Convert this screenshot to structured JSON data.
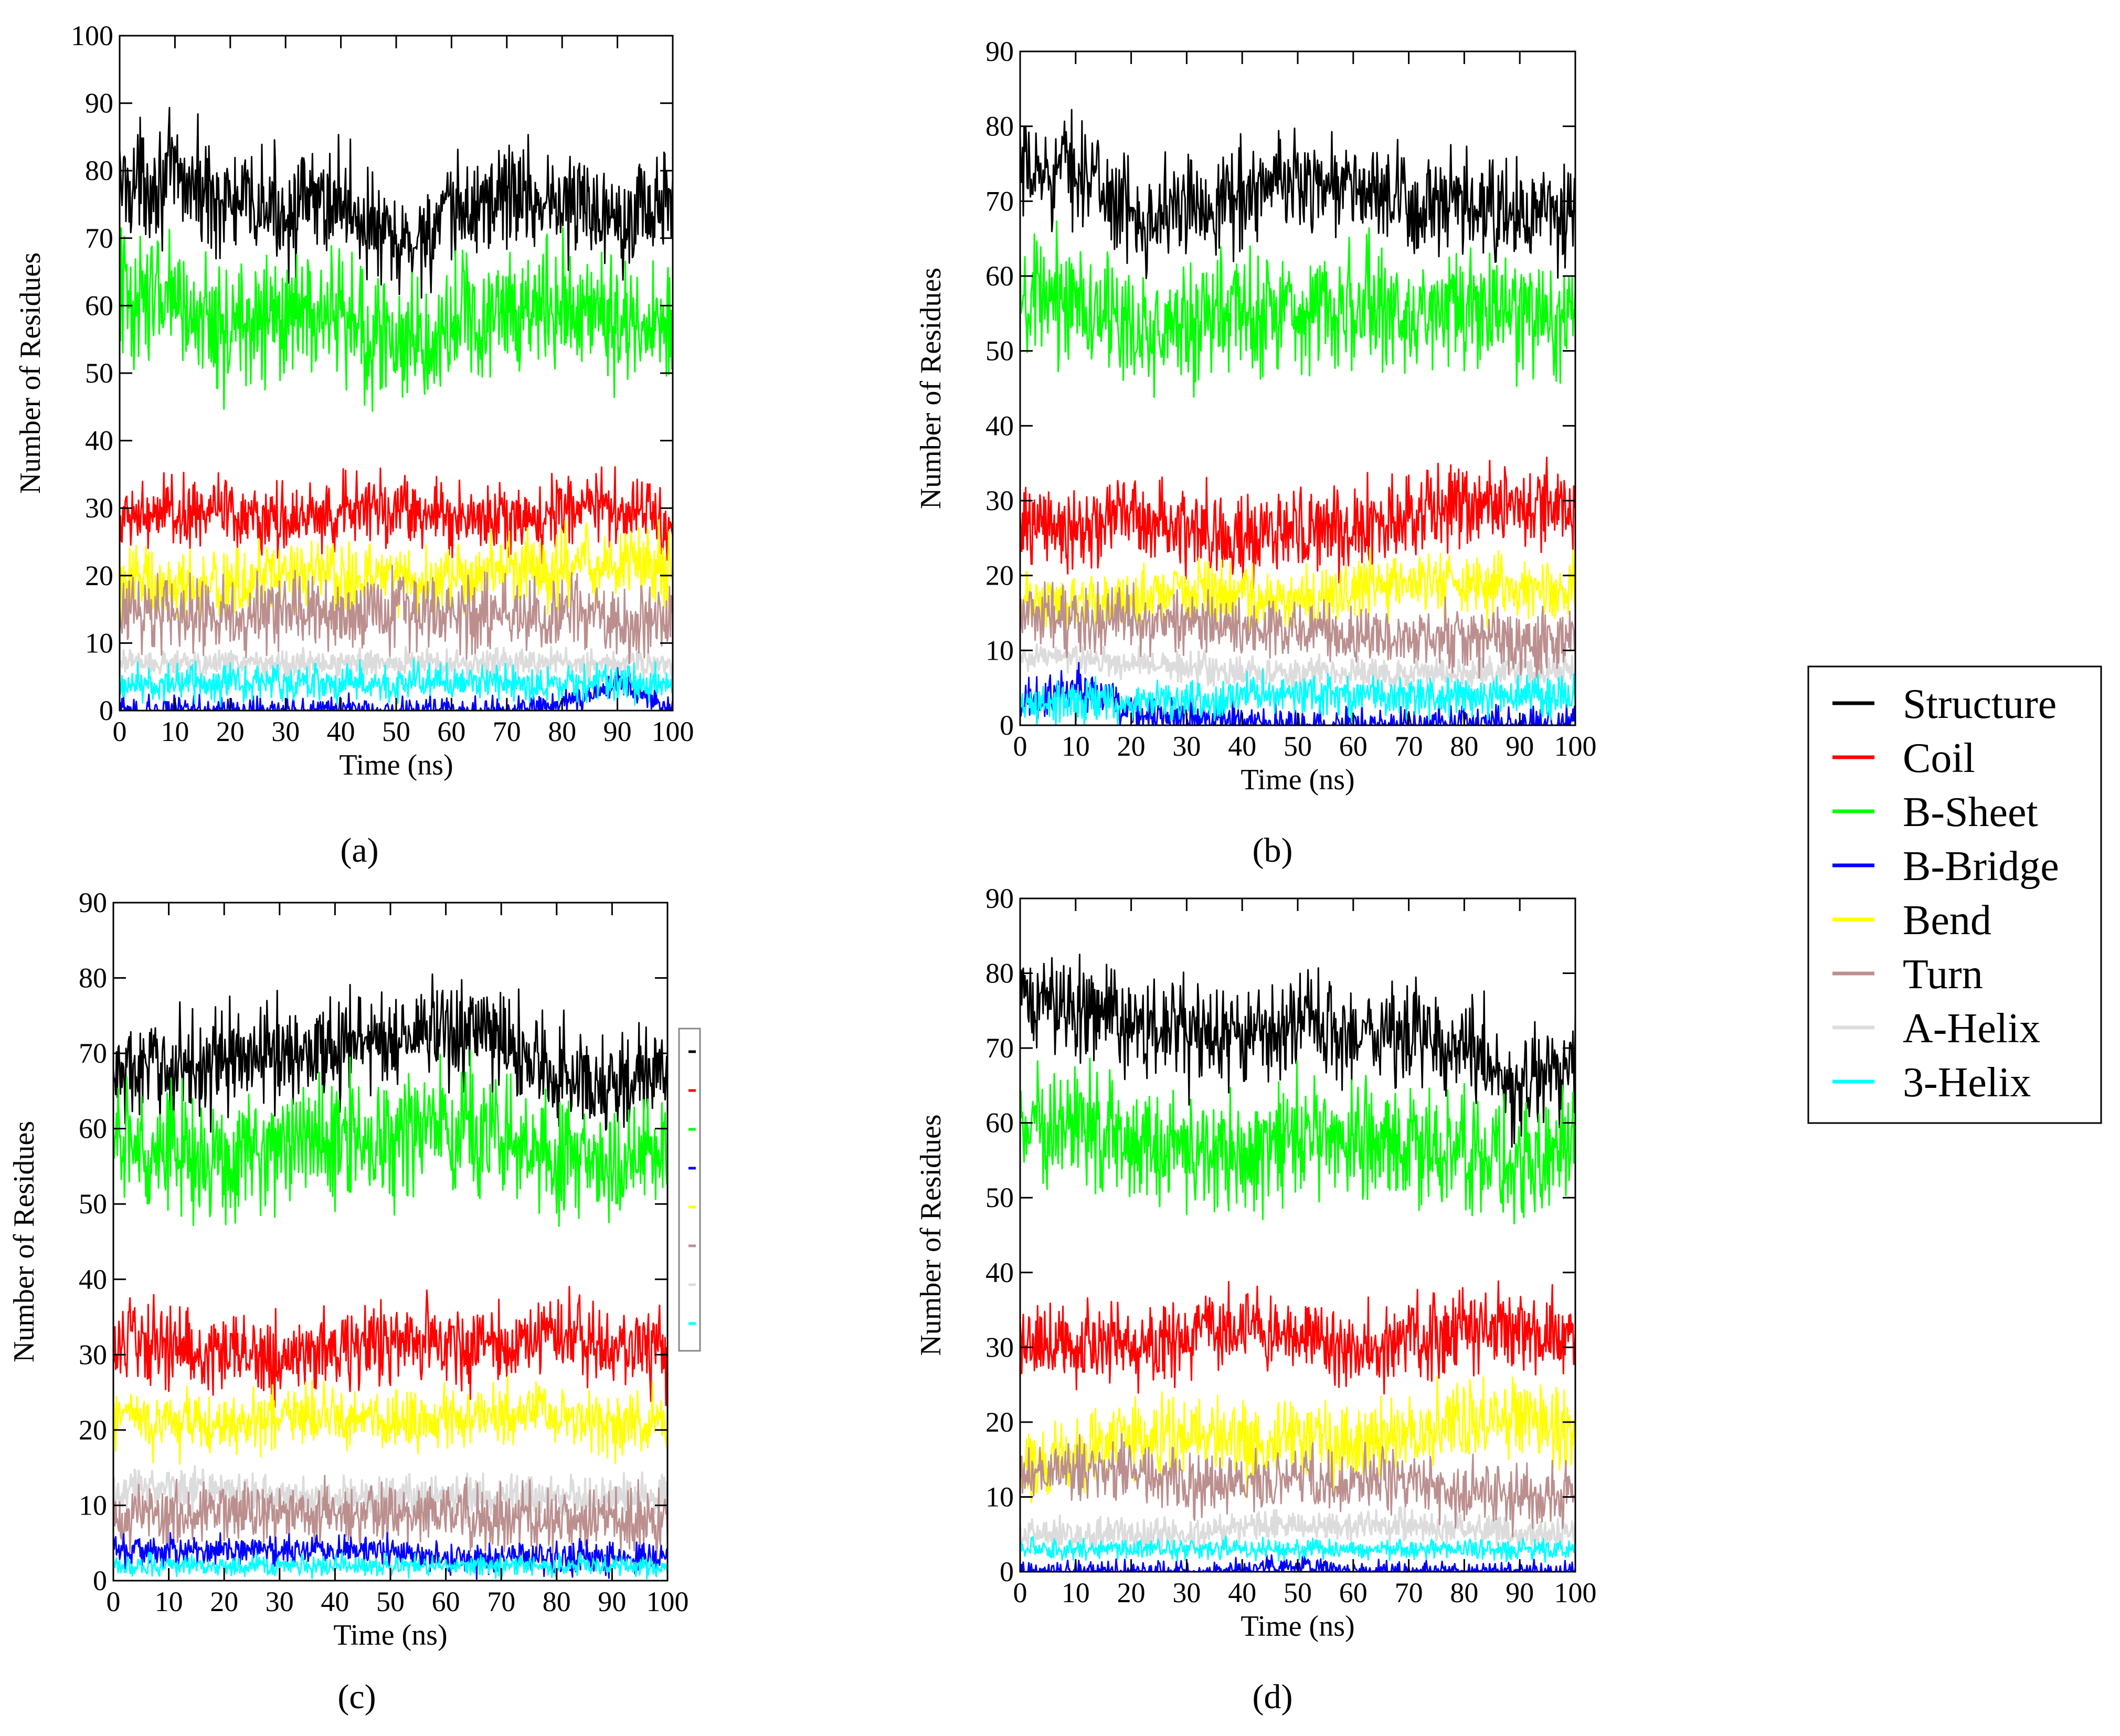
{
  "panel_labels": [
    "(a)",
    "(b)",
    "(c)",
    "(d)"
  ],
  "legend": {
    "entries": [
      {
        "name": "Structure",
        "color": "#000000"
      },
      {
        "name": "Coil",
        "color": "#ff0000"
      },
      {
        "name": "B-Sheet",
        "color": "#00ff00"
      },
      {
        "name": "B-Bridge",
        "color": "#0000ff"
      },
      {
        "name": "Bend",
        "color": "#ffff00"
      },
      {
        "name": "Turn",
        "color": "#bc8f8f"
      },
      {
        "name": "A-Helix",
        "color": "#dcdcdc"
      },
      {
        "name": "3-Helix",
        "color": "#00ffff"
      }
    ]
  },
  "chart_data": [
    {
      "type": "line",
      "panel": "(a)",
      "xlabel": "Time (ns)",
      "ylabel": "Number of Residues",
      "xlim": [
        0,
        100
      ],
      "ylim": [
        0,
        100
      ],
      "xticks": [
        0,
        10,
        20,
        30,
        40,
        50,
        60,
        70,
        80,
        90,
        100
      ],
      "yticks": [
        0,
        10,
        20,
        30,
        40,
        50,
        60,
        70,
        80,
        90,
        100
      ],
      "x_samples": [
        0,
        10,
        20,
        30,
        40,
        50,
        60,
        70,
        80,
        90,
        100
      ],
      "series": [
        {
          "name": "Structure",
          "values": [
            78,
            79,
            75,
            74,
            76,
            68,
            73,
            77,
            75,
            74,
            75
          ],
          "spread": 6
        },
        {
          "name": "B-Sheet",
          "values": [
            62,
            60,
            57,
            58,
            58,
            54,
            57,
            60,
            60,
            58,
            57
          ],
          "spread": 7
        },
        {
          "name": "Coil",
          "values": [
            29,
            29,
            30,
            28,
            29,
            30,
            29,
            28,
            30,
            30,
            28
          ],
          "spread": 4
        },
        {
          "name": "Bend",
          "values": [
            19,
            18,
            19,
            20,
            20,
            20,
            19,
            21,
            21,
            22,
            21
          ],
          "spread": 4
        },
        {
          "name": "Turn",
          "values": [
            15,
            15,
            14,
            15,
            14,
            15,
            14,
            14,
            15,
            13,
            14
          ],
          "spread": 4
        },
        {
          "name": "A-Helix",
          "values": [
            7,
            7,
            7,
            7,
            7,
            7,
            7,
            7,
            7,
            7,
            7
          ],
          "spread": 1.5
        },
        {
          "name": "B-Bridge",
          "values": [
            0,
            0,
            0,
            0,
            0,
            0,
            0,
            0,
            1,
            4,
            0
          ],
          "spread": 1.5
        },
        {
          "name": "3-Helix",
          "values": [
            4,
            4,
            4,
            4,
            4,
            4,
            4,
            4,
            4,
            4,
            4
          ],
          "spread": 2
        }
      ]
    },
    {
      "type": "line",
      "panel": "(b)",
      "xlabel": "Time (ns)",
      "ylabel": "Number of Residues",
      "xlim": [
        0,
        100
      ],
      "ylim": [
        0,
        90
      ],
      "xticks": [
        0,
        10,
        20,
        30,
        40,
        50,
        60,
        70,
        80,
        90,
        100
      ],
      "yticks": [
        0,
        10,
        20,
        30,
        40,
        50,
        60,
        70,
        80,
        90
      ],
      "x_samples": [
        0,
        10,
        20,
        30,
        40,
        50,
        60,
        70,
        80,
        90,
        100
      ],
      "series": [
        {
          "name": "Structure",
          "values": [
            73,
            75,
            68,
            69,
            71,
            73,
            72,
            69,
            69,
            68,
            68
          ],
          "spread": 5
        },
        {
          "name": "B-Sheet",
          "values": [
            55,
            58,
            52,
            54,
            55,
            56,
            56,
            55,
            55,
            54,
            55
          ],
          "spread": 6
        },
        {
          "name": "Coil",
          "values": [
            27,
            26,
            28,
            26,
            25,
            26,
            26,
            28,
            29,
            30,
            28
          ],
          "spread": 4
        },
        {
          "name": "Bend",
          "values": [
            17,
            16,
            17,
            18,
            17,
            17,
            18,
            19,
            19,
            18,
            18
          ],
          "spread": 3
        },
        {
          "name": "Turn",
          "values": [
            15,
            14,
            14,
            14,
            13,
            13,
            12,
            12,
            12,
            11,
            11
          ],
          "spread": 3
        },
        {
          "name": "A-Helix",
          "values": [
            9,
            9,
            8,
            8,
            7,
            7,
            7,
            7,
            7,
            7,
            7
          ],
          "spread": 1.5
        },
        {
          "name": "B-Bridge",
          "values": [
            3,
            5,
            2,
            1,
            0,
            0,
            0,
            0,
            0,
            0,
            0
          ],
          "spread": 2
        },
        {
          "name": "3-Helix",
          "values": [
            3,
            3,
            3,
            3,
            4,
            4,
            4,
            4,
            4,
            4,
            4
          ],
          "spread": 2
        }
      ]
    },
    {
      "type": "line",
      "panel": "(c)",
      "xlabel": "Time (ns)",
      "ylabel": "Number of Residues",
      "xlim": [
        0,
        100
      ],
      "ylim": [
        0,
        90
      ],
      "xticks": [
        0,
        10,
        20,
        30,
        40,
        50,
        60,
        70,
        80,
        90,
        100
      ],
      "yticks": [
        0,
        10,
        20,
        30,
        40,
        50,
        60,
        70,
        80,
        90
      ],
      "x_samples": [
        0,
        10,
        20,
        30,
        40,
        50,
        60,
        70,
        80,
        90,
        100
      ],
      "series": [
        {
          "name": "Structure",
          "values": [
            67,
            68,
            69,
            70,
            71,
            72,
            73,
            72,
            67,
            66,
            67
          ],
          "spread": 5
        },
        {
          "name": "B-Sheet",
          "values": [
            58,
            57,
            56,
            58,
            58,
            59,
            60,
            59,
            56,
            55,
            56
          ],
          "spread": 6
        },
        {
          "name": "Coil",
          "values": [
            32,
            31,
            30,
            29,
            31,
            32,
            32,
            31,
            32,
            31,
            31
          ],
          "spread": 4
        },
        {
          "name": "Bend",
          "values": [
            22,
            21,
            21,
            22,
            22,
            21,
            21,
            22,
            22,
            21,
            21
          ],
          "spread": 3
        },
        {
          "name": "Turn",
          "values": [
            9,
            9,
            9,
            9,
            9,
            9,
            9,
            8,
            8,
            8,
            8
          ],
          "spread": 3
        },
        {
          "name": "A-Helix",
          "values": [
            12,
            12,
            12,
            11,
            11,
            11,
            11,
            11,
            11,
            11,
            11
          ],
          "spread": 2
        },
        {
          "name": "B-Bridge",
          "values": [
            4,
            4,
            4,
            4,
            4,
            4,
            3,
            3,
            3,
            3,
            3
          ],
          "spread": 1.5
        },
        {
          "name": "3-Helix",
          "values": [
            2,
            2,
            2,
            2,
            2,
            2,
            2,
            2,
            2,
            2,
            2
          ],
          "spread": 1
        }
      ]
    },
    {
      "type": "line",
      "panel": "(d)",
      "xlabel": "Time (ns)",
      "ylabel": "Number of Residues",
      "xlim": [
        0,
        100
      ],
      "ylim": [
        0,
        90
      ],
      "xticks": [
        0,
        10,
        20,
        30,
        40,
        50,
        60,
        70,
        80,
        90,
        100
      ],
      "yticks": [
        0,
        10,
        20,
        30,
        40,
        50,
        60,
        70,
        80,
        90
      ],
      "x_samples": [
        0,
        10,
        20,
        30,
        40,
        50,
        60,
        70,
        80,
        90,
        100
      ],
      "series": [
        {
          "name": "Structure",
          "values": [
            76,
            76,
            73,
            72,
            71,
            73,
            72,
            72,
            71,
            64,
            68
          ],
          "spread": 5
        },
        {
          "name": "B-Sheet",
          "values": [
            60,
            59,
            57,
            57,
            56,
            58,
            58,
            57,
            56,
            55,
            57
          ],
          "spread": 6
        },
        {
          "name": "Coil",
          "values": [
            30,
            30,
            30,
            31,
            33,
            31,
            30,
            31,
            32,
            33,
            31
          ],
          "spread": 4
        },
        {
          "name": "Bend",
          "values": [
            14,
            15,
            18,
            18,
            17,
            18,
            17,
            19,
            20,
            21,
            19
          ],
          "spread": 4
        },
        {
          "name": "Turn",
          "values": [
            13,
            14,
            14,
            12,
            12,
            12,
            12,
            12,
            11,
            10,
            10
          ],
          "spread": 3
        },
        {
          "name": "A-Helix",
          "values": [
            5,
            5,
            5,
            5,
            6,
            6,
            6,
            6,
            6,
            5,
            5
          ],
          "spread": 1.5
        },
        {
          "name": "B-Bridge",
          "values": [
            0,
            0,
            0,
            0,
            0,
            1,
            0,
            0,
            0,
            0,
            0
          ],
          "spread": 1
        },
        {
          "name": "3-Helix",
          "values": [
            3,
            3,
            3,
            3,
            3,
            3,
            3,
            3,
            3,
            3,
            3
          ],
          "spread": 1
        }
      ]
    }
  ]
}
